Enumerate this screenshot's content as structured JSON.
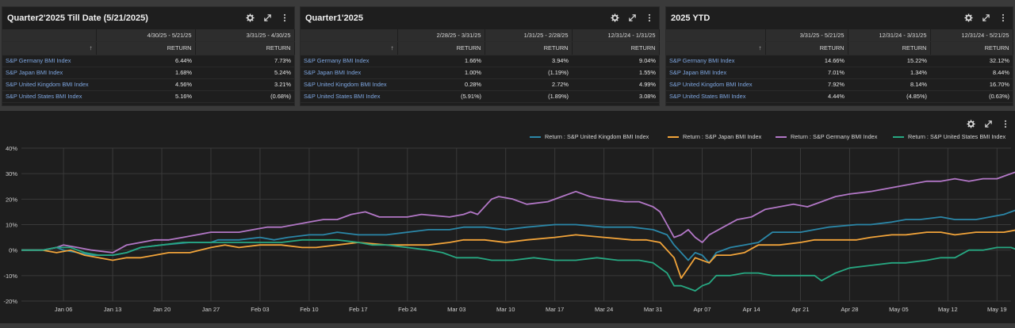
{
  "panels": [
    {
      "title": "Quarter2'2025 Till Date (5/21/2025)",
      "columns": [
        "4/30/25 - 5/21/25",
        "3/31/25 - 4/30/25"
      ],
      "col_label": "RETURN",
      "rows": [
        {
          "name": "S&P Germany BMI Index",
          "values": [
            "6.44%",
            "7.73%"
          ]
        },
        {
          "name": "S&P Japan BMI Index",
          "values": [
            "1.68%",
            "5.24%"
          ]
        },
        {
          "name": "S&P United Kingdom BMI Index",
          "values": [
            "4.56%",
            "3.21%"
          ]
        },
        {
          "name": "S&P United States BMI Index",
          "values": [
            "5.16%",
            "(0.68%)"
          ]
        }
      ]
    },
    {
      "title": "Quarter1'2025",
      "columns": [
        "2/28/25 - 3/31/25",
        "1/31/25 - 2/28/25",
        "12/31/24 - 1/31/25"
      ],
      "col_label": "RETURN",
      "rows": [
        {
          "name": "S&P Germany BMI Index",
          "values": [
            "1.66%",
            "3.94%",
            "9.04%"
          ]
        },
        {
          "name": "S&P Japan BMI Index",
          "values": [
            "1.00%",
            "(1.19%)",
            "1.55%"
          ]
        },
        {
          "name": "S&P United Kingdom BMI Index",
          "values": [
            "0.28%",
            "2.72%",
            "4.99%"
          ]
        },
        {
          "name": "S&P United States BMI Index",
          "values": [
            "(5.91%)",
            "(1.89%)",
            "3.08%"
          ]
        }
      ]
    },
    {
      "title": "2025 YTD",
      "columns": [
        "3/31/25 - 5/21/25",
        "12/31/24 - 3/31/25",
        "12/31/24 - 5/21/25"
      ],
      "col_label": "RETURN",
      "rows": [
        {
          "name": "S&P Germany BMI Index",
          "values": [
            "14.66%",
            "15.22%",
            "32.12%"
          ]
        },
        {
          "name": "S&P Japan BMI Index",
          "values": [
            "7.01%",
            "1.34%",
            "8.44%"
          ]
        },
        {
          "name": "S&P United Kingdom BMI Index",
          "values": [
            "7.92%",
            "8.14%",
            "16.70%"
          ]
        },
        {
          "name": "S&P United States BMI Index",
          "values": [
            "4.44%",
            "(4.85%)",
            "(0.63%)"
          ]
        }
      ]
    }
  ],
  "sort_arrow": "↑",
  "icons": [
    "gear-icon",
    "expand-icon",
    "more-icon"
  ],
  "chart_data": {
    "type": "line",
    "title": "",
    "xlabel": "",
    "ylabel": "",
    "x_ticks": [
      "Jan 06",
      "Jan 13",
      "Jan 20",
      "Jan 27",
      "Feb 03",
      "Feb 10",
      "Feb 17",
      "Feb 24",
      "Mar 03",
      "Mar 10",
      "Mar 17",
      "Mar 24",
      "Mar 31",
      "Apr 07",
      "Apr 14",
      "Apr 21",
      "Apr 28",
      "May 05",
      "May 12",
      "May 19"
    ],
    "x_range": [
      "Dec 31",
      "May 21"
    ],
    "y_ticks": [
      "40%",
      "30%",
      "20%",
      "10%",
      "0%",
      "-10%",
      "-20%"
    ],
    "ylim": [
      -20,
      40
    ],
    "grid": true,
    "legend_position": "top-right",
    "series": [
      {
        "name": "Return : S&P United Kingdom BMI Index",
        "color": "#2b87a8",
        "points": [
          [
            0,
            0
          ],
          [
            3,
            0
          ],
          [
            5,
            1
          ],
          [
            6,
            0
          ],
          [
            8,
            -1
          ],
          [
            10,
            -2
          ],
          [
            13,
            -2
          ],
          [
            15,
            -1
          ],
          [
            17,
            1
          ],
          [
            20,
            2
          ],
          [
            24,
            3
          ],
          [
            27,
            3
          ],
          [
            28,
            4
          ],
          [
            31,
            4
          ],
          [
            34,
            5
          ],
          [
            36,
            4
          ],
          [
            38,
            5
          ],
          [
            41,
            6
          ],
          [
            43,
            6
          ],
          [
            45,
            7
          ],
          [
            48,
            6
          ],
          [
            52,
            6
          ],
          [
            55,
            7
          ],
          [
            58,
            8
          ],
          [
            61,
            8
          ],
          [
            63,
            9
          ],
          [
            66,
            9
          ],
          [
            69,
            8
          ],
          [
            72,
            9
          ],
          [
            76,
            10
          ],
          [
            79,
            10
          ],
          [
            83,
            9
          ],
          [
            87,
            9
          ],
          [
            90,
            8
          ],
          [
            92,
            6
          ],
          [
            93,
            2
          ],
          [
            95,
            -4
          ],
          [
            96,
            -1
          ],
          [
            97,
            -2
          ],
          [
            98,
            -5
          ],
          [
            99,
            -1
          ],
          [
            101,
            1
          ],
          [
            103,
            2
          ],
          [
            105,
            3
          ],
          [
            107,
            7
          ],
          [
            109,
            7
          ],
          [
            111,
            7
          ],
          [
            113,
            8
          ],
          [
            115,
            9
          ],
          [
            119,
            10
          ],
          [
            121,
            10
          ],
          [
            124,
            11
          ],
          [
            126,
            12
          ],
          [
            128,
            12
          ],
          [
            131,
            13
          ],
          [
            133,
            12
          ],
          [
            136,
            12
          ],
          [
            138,
            13
          ],
          [
            140,
            14
          ],
          [
            141,
            15
          ],
          [
            142,
            16
          ],
          [
            143,
            17
          ]
        ]
      },
      {
        "name": "Return : S&P Japan BMI Index",
        "color": "#f2a43a",
        "points": [
          [
            0,
            0
          ],
          [
            3,
            0
          ],
          [
            5,
            -1
          ],
          [
            7,
            0
          ],
          [
            9,
            -2
          ],
          [
            11,
            -3
          ],
          [
            13,
            -4
          ],
          [
            15,
            -3
          ],
          [
            17,
            -3
          ],
          [
            19,
            -2
          ],
          [
            21,
            -1
          ],
          [
            24,
            -1
          ],
          [
            27,
            1
          ],
          [
            29,
            2
          ],
          [
            31,
            1
          ],
          [
            34,
            2
          ],
          [
            37,
            2
          ],
          [
            40,
            1
          ],
          [
            42,
            1
          ],
          [
            45,
            2
          ],
          [
            48,
            3
          ],
          [
            52,
            2
          ],
          [
            55,
            2
          ],
          [
            58,
            2
          ],
          [
            61,
            3
          ],
          [
            63,
            4
          ],
          [
            66,
            4
          ],
          [
            69,
            3
          ],
          [
            72,
            4
          ],
          [
            76,
            5
          ],
          [
            79,
            6
          ],
          [
            83,
            5
          ],
          [
            87,
            4
          ],
          [
            89,
            4
          ],
          [
            91,
            3
          ],
          [
            93,
            -3
          ],
          [
            94,
            -11
          ],
          [
            95,
            -7
          ],
          [
            96,
            -3
          ],
          [
            98,
            -5
          ],
          [
            99,
            -2
          ],
          [
            101,
            -2
          ],
          [
            103,
            -1
          ],
          [
            105,
            2
          ],
          [
            108,
            2
          ],
          [
            111,
            3
          ],
          [
            113,
            4
          ],
          [
            115,
            4
          ],
          [
            119,
            4
          ],
          [
            121,
            5
          ],
          [
            124,
            6
          ],
          [
            126,
            6
          ],
          [
            129,
            7
          ],
          [
            131,
            7
          ],
          [
            133,
            6
          ],
          [
            136,
            7
          ],
          [
            138,
            7
          ],
          [
            140,
            7
          ],
          [
            142,
            8
          ],
          [
            143,
            8.5
          ]
        ]
      },
      {
        "name": "Return : S&P Germany BMI Index",
        "color": "#b277c6",
        "points": [
          [
            0,
            0
          ],
          [
            3,
            0
          ],
          [
            5,
            1
          ],
          [
            6,
            2
          ],
          [
            8,
            1
          ],
          [
            10,
            0
          ],
          [
            13,
            -1
          ],
          [
            15,
            2
          ],
          [
            17,
            3
          ],
          [
            19,
            4
          ],
          [
            21,
            4
          ],
          [
            23,
            5
          ],
          [
            25,
            6
          ],
          [
            27,
            7
          ],
          [
            29,
            7
          ],
          [
            31,
            7
          ],
          [
            33,
            8
          ],
          [
            35,
            9
          ],
          [
            37,
            9
          ],
          [
            39,
            10
          ],
          [
            41,
            11
          ],
          [
            43,
            12
          ],
          [
            45,
            12
          ],
          [
            47,
            14
          ],
          [
            49,
            15
          ],
          [
            51,
            13
          ],
          [
            55,
            13
          ],
          [
            57,
            14
          ],
          [
            61,
            13
          ],
          [
            63,
            14
          ],
          [
            64,
            15
          ],
          [
            65,
            14
          ],
          [
            67,
            20
          ],
          [
            68,
            21
          ],
          [
            70,
            20
          ],
          [
            72,
            18
          ],
          [
            75,
            19
          ],
          [
            77,
            21
          ],
          [
            79,
            23
          ],
          [
            81,
            21
          ],
          [
            83,
            20
          ],
          [
            86,
            19
          ],
          [
            88,
            19
          ],
          [
            90,
            17
          ],
          [
            91,
            15
          ],
          [
            92,
            10
          ],
          [
            93,
            5
          ],
          [
            94,
            6
          ],
          [
            95,
            8
          ],
          [
            96,
            5
          ],
          [
            97,
            3
          ],
          [
            98,
            6
          ],
          [
            100,
            9
          ],
          [
            102,
            12
          ],
          [
            104,
            13
          ],
          [
            106,
            16
          ],
          [
            108,
            17
          ],
          [
            110,
            18
          ],
          [
            112,
            17
          ],
          [
            114,
            19
          ],
          [
            116,
            21
          ],
          [
            118,
            22
          ],
          [
            121,
            23
          ],
          [
            123,
            24
          ],
          [
            125,
            25
          ],
          [
            127,
            26
          ],
          [
            129,
            27
          ],
          [
            131,
            27
          ],
          [
            133,
            28
          ],
          [
            135,
            27
          ],
          [
            137,
            28
          ],
          [
            139,
            28
          ],
          [
            140,
            29
          ],
          [
            141,
            30
          ],
          [
            142,
            31
          ],
          [
            143,
            32
          ]
        ]
      },
      {
        "name": "Return : S&P United States BMI Index",
        "color": "#27a882",
        "points": [
          [
            0,
            0
          ],
          [
            3,
            0
          ],
          [
            5,
            1
          ],
          [
            7,
            1
          ],
          [
            9,
            -1
          ],
          [
            11,
            -2
          ],
          [
            13,
            -2
          ],
          [
            15,
            -1
          ],
          [
            17,
            1
          ],
          [
            20,
            2
          ],
          [
            23,
            3
          ],
          [
            27,
            3
          ],
          [
            30,
            3
          ],
          [
            34,
            3
          ],
          [
            37,
            3
          ],
          [
            40,
            4
          ],
          [
            42,
            4
          ],
          [
            45,
            4
          ],
          [
            48,
            3
          ],
          [
            50,
            2
          ],
          [
            52,
            2
          ],
          [
            55,
            1
          ],
          [
            58,
            0
          ],
          [
            60,
            -1
          ],
          [
            62,
            -3
          ],
          [
            65,
            -3
          ],
          [
            67,
            -4
          ],
          [
            70,
            -4
          ],
          [
            73,
            -3
          ],
          [
            76,
            -4
          ],
          [
            79,
            -4
          ],
          [
            82,
            -3
          ],
          [
            85,
            -4
          ],
          [
            88,
            -4
          ],
          [
            90,
            -5
          ],
          [
            91,
            -7
          ],
          [
            92,
            -9
          ],
          [
            93,
            -14
          ],
          [
            94,
            -14
          ],
          [
            95,
            -15
          ],
          [
            96,
            -16
          ],
          [
            97,
            -14
          ],
          [
            98,
            -13
          ],
          [
            99,
            -10
          ],
          [
            101,
            -10
          ],
          [
            103,
            -9
          ],
          [
            105,
            -9
          ],
          [
            107,
            -10
          ],
          [
            109,
            -10
          ],
          [
            111,
            -10
          ],
          [
            113,
            -10
          ],
          [
            114,
            -12
          ],
          [
            116,
            -9
          ],
          [
            118,
            -7
          ],
          [
            121,
            -6
          ],
          [
            124,
            -5
          ],
          [
            126,
            -5
          ],
          [
            129,
            -4
          ],
          [
            131,
            -3
          ],
          [
            133,
            -3
          ],
          [
            135,
            0
          ],
          [
            137,
            0
          ],
          [
            139,
            1
          ],
          [
            141,
            1
          ],
          [
            142,
            0
          ],
          [
            143,
            -0.6
          ]
        ]
      }
    ]
  }
}
